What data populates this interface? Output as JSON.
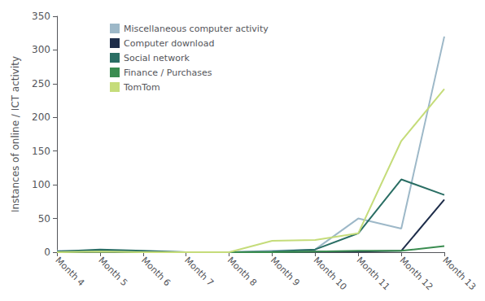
{
  "chart_data": {
    "type": "line",
    "categories": [
      "Month 4",
      "Month 5",
      "Month 6",
      "Month 7",
      "Month 8",
      "Month 9",
      "Month 10",
      "Month 11",
      "Month 12",
      "Month 13"
    ],
    "series": [
      {
        "name": "Miscellaneous computer activity",
        "color": "#9db8c8",
        "values": [
          2,
          2,
          1,
          0,
          0,
          2,
          4,
          50,
          35,
          320
        ]
      },
      {
        "name": "Computer download",
        "color": "#1e2d4a",
        "values": [
          0,
          0,
          0,
          0,
          0,
          0,
          1,
          1,
          2,
          78
        ]
      },
      {
        "name": "Social network",
        "color": "#2a6e64",
        "values": [
          1,
          4,
          2,
          0,
          0,
          1,
          4,
          28,
          108,
          85
        ]
      },
      {
        "name": "Finance / Purchases",
        "color": "#3a8c50",
        "values": [
          0,
          1,
          0,
          0,
          0,
          0,
          1,
          2,
          2,
          9
        ]
      },
      {
        "name": "TomTom",
        "color": "#c5dc7a",
        "values": [
          0,
          1,
          0,
          0,
          0,
          17,
          18,
          28,
          165,
          242
        ]
      }
    ],
    "ylabel": "Instances of online / ICT activity",
    "ylim": [
      0,
      350
    ],
    "yticks": [
      0,
      50,
      100,
      150,
      200,
      250,
      300,
      350
    ],
    "grid": false,
    "legend": "upper left"
  }
}
